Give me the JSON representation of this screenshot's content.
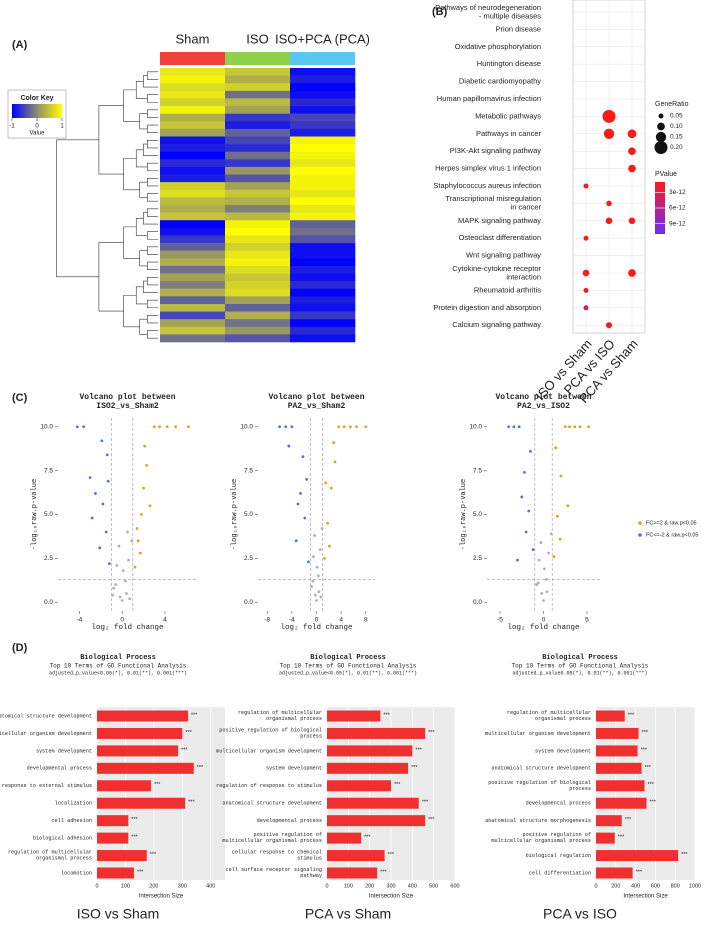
{
  "panel_labels": [
    "(A)",
    "(B)",
    "(C)",
    "(D)"
  ],
  "chart_data": [
    {
      "type": "heatmap",
      "columns": [
        "Sham",
        "ISO",
        "ISO+PCA (PCA)"
      ],
      "column_colors": [
        "#f0403c",
        "#8fd14f",
        "#5bc8f0"
      ],
      "legend_title": "Color Key",
      "legend_label": "Value",
      "clim": [
        -1,
        1
      ],
      "colors": [
        "#0000ff",
        "#8c8c6e",
        "#ffff00"
      ],
      "ticks": [
        -1,
        0,
        1
      ],
      "values": [
        [
          0.8,
          0.5,
          -0.9
        ],
        [
          0.9,
          0.3,
          -0.8
        ],
        [
          0.7,
          0.6,
          -1
        ],
        [
          0.8,
          -0.2,
          -0.9
        ],
        [
          0.6,
          0.4,
          -0.7
        ],
        [
          0.9,
          0.2,
          -0.9
        ],
        [
          0.3,
          -0.6,
          -0.5
        ],
        [
          0.5,
          -0.8,
          -0.6
        ],
        [
          0.2,
          -0.3,
          -0.8
        ],
        [
          -0.9,
          -0.5,
          0.9
        ],
        [
          -0.8,
          -0.7,
          1
        ],
        [
          -1,
          -0.2,
          0.9
        ],
        [
          -0.7,
          -0.6,
          0.8
        ],
        [
          -0.9,
          0.1,
          1
        ],
        [
          -0.8,
          -0.4,
          0.9
        ],
        [
          0.6,
          0.2,
          0.9
        ],
        [
          0.7,
          0.5,
          0.8
        ],
        [
          0.4,
          0.3,
          1
        ],
        [
          0.3,
          -0.1,
          0.8
        ],
        [
          0.5,
          0.4,
          0.9
        ],
        [
          -1,
          0.9,
          -0.3
        ],
        [
          -0.9,
          1,
          -0.2
        ],
        [
          -0.6,
          0.8,
          -0.4
        ],
        [
          -0.3,
          0.6,
          -0.9
        ],
        [
          0.1,
          0.8,
          -0.9
        ],
        [
          0.3,
          0.9,
          -1
        ],
        [
          -0.2,
          0.7,
          -0.8
        ],
        [
          0.2,
          0.5,
          -0.9
        ],
        [
          -0.1,
          0.6,
          -0.7
        ],
        [
          0.3,
          0.7,
          -1
        ],
        [
          -0.3,
          0.2,
          -0.8
        ],
        [
          0.4,
          -0.3,
          -0.9
        ],
        [
          -0.5,
          0.3,
          -0.6
        ],
        [
          0.2,
          -0.2,
          -1
        ],
        [
          0.5,
          0.1,
          -0.7
        ],
        [
          -0.2,
          -0.4,
          -0.9
        ]
      ]
    },
    {
      "type": "dot",
      "categories": [
        "Pathways of neurodegeneration - multiple diseases",
        "Prion disease",
        "Oxidative phosphorylation",
        "Huntington disease",
        "Diabetic cardiomyopathy",
        "Human papillomavirus infection",
        "Metabolic pathways",
        "Pathways in cancer",
        "PI3K-Akt signaling pathway",
        "Herpes simplex virus 1 infection",
        "Staphylococcus aureus infection",
        "Transcriptional misregulation in cancer",
        "MAPK signaling pathway",
        "Osteoclast differentiation",
        "Wnt signaling pathway",
        "Cytokine-cytokine receptor interaction",
        "Rheumatoid arthritis",
        "Protein digestion and absorption",
        "Calcium signaling pathway"
      ],
      "series": [
        {
          "name": "ISO vs Sham",
          "gene_ratio": [
            null,
            null,
            null,
            null,
            null,
            null,
            null,
            null,
            null,
            null,
            0.05,
            null,
            null,
            0.05,
            null,
            0.08,
            0.05,
            0.05,
            null
          ],
          "pvalue": [
            null,
            null,
            null,
            null,
            null,
            null,
            null,
            null,
            null,
            null,
            1e-12,
            null,
            null,
            1e-12,
            null,
            1e-12,
            2e-12,
            4e-12,
            null
          ]
        },
        {
          "name": "PCA vs ISO",
          "gene_ratio": [
            null,
            null,
            null,
            null,
            null,
            null,
            0.2,
            0.15,
            null,
            null,
            null,
            0.06,
            0.08,
            null,
            null,
            null,
            null,
            null,
            0.07
          ],
          "pvalue": [
            null,
            null,
            null,
            null,
            null,
            null,
            1e-12,
            1e-12,
            null,
            null,
            null,
            1e-12,
            1e-12,
            null,
            null,
            null,
            null,
            null,
            1e-12
          ]
        },
        {
          "name": "PCA vs Sham",
          "gene_ratio": [
            null,
            null,
            null,
            null,
            null,
            null,
            null,
            0.12,
            0.1,
            0.1,
            null,
            null,
            0.08,
            null,
            null,
            0.1,
            null,
            null,
            null
          ],
          "pvalue": [
            null,
            null,
            null,
            null,
            null,
            null,
            null,
            1e-12,
            1e-12,
            1e-12,
            null,
            null,
            1e-12,
            null,
            null,
            1e-12,
            null,
            null,
            null
          ]
        }
      ],
      "size_title": "GeneRatio",
      "size_ticks": [
        0.05,
        {
          "value": 0.1,
          "label": "0.10"
        },
        0.15,
        {
          "value": 0.2,
          "label": "0.20"
        }
      ],
      "color_title": "PValue",
      "color_lim": [
        1e-12,
        1.1e-11
      ],
      "colors": [
        "#ff1a1a",
        "#6a2cff"
      ],
      "color_ticks": [
        {
          "value": 3e-12,
          "label": "3e-12"
        },
        {
          "value": 6e-12,
          "label": "6e-12"
        },
        {
          "value": 9e-12,
          "label": "9e-12"
        }
      ]
    },
    {
      "type": "scatter",
      "title": "Volcano plot between",
      "subtitle": "ISO2_vs_Sham2",
      "xlabel": "log₂ fold change",
      "ylabel": "-log₁₀raw.p-value",
      "xlim": [
        -6,
        7
      ],
      "xticks": [
        -4,
        0,
        4
      ],
      "ylim": [
        -0.5,
        10.5
      ],
      "yticks": [
        {
          "value": 0,
          "label": "0.0"
        },
        2.5,
        {
          "value": 5,
          "label": "5.0"
        },
        7.5,
        {
          "value": 10,
          "label": "10.0"
        }
      ],
      "p_threshold": 1.3,
      "fc_threshold": [
        -1,
        1
      ],
      "series": [
        {
          "color": "#e0a020",
          "x": [
            1.2,
            1.5,
            1.8,
            2.0,
            2.3,
            2.6,
            3.0,
            3.5,
            4.2,
            5.0,
            6.2,
            1.4,
            2.1,
            1.7
          ],
          "values": [
            2.0,
            3.5,
            5.0,
            6.5,
            7.8,
            5.5,
            10,
            10,
            10,
            10,
            10,
            4.2,
            8.9,
            2.8
          ]
        },
        {
          "color": "#4a78d8",
          "x": [
            -1.2,
            -1.5,
            -1.8,
            -2.1,
            -2.5,
            -3.0,
            -3.6,
            -4.2,
            -1.4,
            -2.8,
            -1.9,
            -1.3
          ],
          "values": [
            2.2,
            4.0,
            5.6,
            3.1,
            6.2,
            7.1,
            10,
            10,
            8.4,
            4.8,
            9.2,
            6.9
          ]
        },
        {
          "color": "#b0b0b0",
          "x": [
            -0.8,
            -0.5,
            -0.2,
            0,
            0.3,
            0.6,
            0.9,
            -0.6,
            0.4,
            -0.3,
            0.1,
            0.7,
            -0.9,
            0.5
          ],
          "values": [
            0.8,
            2.1,
            0.3,
            0.1,
            1.2,
            2.4,
            3.5,
            1.0,
            0.5,
            3.2,
            1.8,
            0.2,
            0.4,
            4.0
          ]
        }
      ]
    },
    {
      "type": "scatter",
      "title": "Volcano plot between",
      "subtitle": "PA2_vs_Sham2",
      "xlabel": "log₂ fold change",
      "ylabel": "-log₁₀raw.p-value",
      "xlim": [
        -9.5,
        9.5
      ],
      "xticks": [
        -8,
        -4,
        0,
        4,
        8
      ],
      "ylim": [
        -0.5,
        10.5
      ],
      "yticks": [
        {
          "value": 0,
          "label": "0.0"
        },
        2.5,
        {
          "value": 5,
          "label": "5.0"
        },
        7.5,
        {
          "value": 10,
          "label": "10.0"
        }
      ],
      "p_threshold": 1.3,
      "fc_threshold": [
        -1,
        1
      ],
      "series": [
        {
          "color": "#e0a020",
          "x": [
            1.3,
            1.8,
            2.4,
            3.0,
            3.6,
            4.5,
            5.5,
            6.5,
            8.0,
            2.1,
            1.5,
            2.8
          ],
          "values": [
            2.5,
            4.5,
            6.5,
            8.0,
            10,
            10,
            10,
            10,
            10,
            3.2,
            6.8,
            9.1
          ]
        },
        {
          "color": "#4a78d8",
          "x": [
            -1.3,
            -1.9,
            -2.6,
            -3.3,
            -4.0,
            -5.0,
            -6.0,
            -2.2,
            -1.6,
            -3.0,
            -4.5
          ],
          "values": [
            2.3,
            4.8,
            6.2,
            3.5,
            10,
            10,
            10,
            8.3,
            7.0,
            5.6,
            8.9
          ]
        },
        {
          "color": "#b0b0b0",
          "x": [
            -0.8,
            -0.5,
            -0.2,
            0,
            0.3,
            0.6,
            0.9,
            -0.6,
            0.4,
            -0.3,
            0.1,
            0.7
          ],
          "values": [
            0.9,
            2.6,
            0.4,
            0.1,
            1.5,
            3.0,
            4.2,
            1.2,
            0.6,
            3.8,
            2.0,
            0.3
          ]
        }
      ]
    },
    {
      "type": "scatter",
      "title": "Volcano plot between",
      "subtitle": "PA2_vs_ISO2",
      "xlabel": "log₂ fold change",
      "ylabel": "-log₁₀raw.p-value",
      "xlim": [
        -6.5,
        6.5
      ],
      "xticks": [
        -5,
        0,
        5
      ],
      "ylim": [
        -0.5,
        10.5
      ],
      "yticks": [
        {
          "value": 0,
          "label": "0.0"
        },
        2.5,
        {
          "value": 5,
          "label": "5.0"
        },
        7.5,
        {
          "value": 10,
          "label": "10.0"
        }
      ],
      "p_threshold": 1.3,
      "fc_threshold": [
        -1,
        1
      ],
      "series": [
        {
          "name": "FC>=2 & raw.p<0.05",
          "color": "#e0a020",
          "x": [
            1.2,
            1.6,
            2.0,
            2.5,
            3.0,
            3.6,
            4.2,
            5.2,
            1.9,
            2.8,
            1.4
          ],
          "values": [
            2.6,
            4.9,
            7.2,
            10,
            10,
            10,
            10,
            10,
            3.6,
            5.5,
            8.8
          ]
        },
        {
          "name": "FC<=-2 & raw.p<0.05",
          "color": "#4a78d8",
          "x": [
            -1.2,
            -1.7,
            -2.2,
            -2.8,
            -3.4,
            -4.0,
            -1.5,
            -2.0,
            -2.5,
            -3.0
          ],
          "values": [
            3.0,
            5.2,
            7.4,
            10,
            10,
            10,
            8.6,
            4.0,
            6.0,
            2.4
          ]
        },
        {
          "color": "#b0b0b0",
          "x": [
            -0.8,
            -0.5,
            -0.2,
            0,
            0.3,
            0.6,
            0.9,
            -0.6,
            0.4,
            -0.3,
            0.1
          ],
          "values": [
            1.0,
            2.4,
            0.5,
            0.1,
            1.3,
            2.8,
            3.9,
            1.1,
            0.6,
            3.4,
            1.9
          ]
        }
      ]
    },
    {
      "type": "hbar",
      "title": "Biological Process",
      "subtitle": "Top 10 Terms of GO Functional Analysis",
      "note": "adjusted_p_value<0.05(*), 0.01(**), 0.001(***)",
      "xlabel": "Intersection Size",
      "caption": "ISO vs Sham",
      "color": "#f03030",
      "xlim": [
        0,
        450
      ],
      "xticks": [
        0,
        100,
        200,
        300,
        400
      ],
      "categories": [
        "anatomical structure development",
        "multicellular organism development",
        "system development",
        "developmental process",
        "response to external stimulus",
        "localization",
        "cell adhesion",
        "biological adhesion",
        "regulation of multicellular organismal process",
        "locomotion"
      ],
      "values": [
        320,
        300,
        285,
        340,
        190,
        310,
        110,
        110,
        175,
        130
      ],
      "value_labels": [
        "***",
        "***",
        "***",
        "***",
        "***",
        "***",
        "***",
        "***",
        "***",
        "***"
      ]
    },
    {
      "type": "hbar",
      "title": "Biological Process",
      "subtitle": "Top 10 Terms of GO Functional Analysis",
      "note": "adjusted_p_value<0.05(*), 0.01(**), 0.001(***)",
      "xlabel": "Intersection Size",
      "caption": "PCA vs Sham",
      "color": "#f03030",
      "xlim": [
        0,
        600
      ],
      "xticks": [
        0,
        100,
        200,
        300,
        400,
        500,
        600
      ],
      "categories": [
        "regulation of multicellular organismal process",
        "positive regulation of biological process",
        "multicellular organism development",
        "system development",
        "regulation of response to stimulus",
        "anatomical structure development",
        "developmental process",
        "positive regulation of multicellular organismal process",
        "cellular response to chemical stimulus",
        "cell surface receptor signaling pathway"
      ],
      "values": [
        250,
        460,
        400,
        380,
        300,
        430,
        460,
        160,
        270,
        235
      ],
      "value_labels": [
        "***",
        "***",
        "***",
        "***",
        "***",
        "***",
        "***",
        "***",
        "***",
        "***"
      ]
    },
    {
      "type": "hbar",
      "title": "Biological Process",
      "subtitle": "Top 10 Terms of GO Functional Analysis",
      "note": "adjusted_p_value0.05(*), 0.01(**), 0.001(***)",
      "xlabel": "Intersection Size",
      "caption": "PCA vs ISO",
      "color": "#f03030",
      "xlim": [
        0,
        1000
      ],
      "xticks": [
        0,
        200,
        400,
        600,
        800,
        1000
      ],
      "categories": [
        "regulation of multicellular organismal process",
        "multicellular organism development",
        "system development",
        "anatomical structure development",
        "positive regulation of biological process",
        "developmental process",
        "anatomical structure morphogenesis",
        "positive regulation of multicellular organismal process",
        "biological regulation",
        "cell differentiation"
      ],
      "values": [
        290,
        430,
        420,
        460,
        490,
        510,
        260,
        190,
        830,
        370
      ],
      "value_labels": [
        "***",
        "***",
        "***",
        "***",
        "***",
        "***",
        "***",
        "***",
        "***",
        "***"
      ]
    }
  ]
}
